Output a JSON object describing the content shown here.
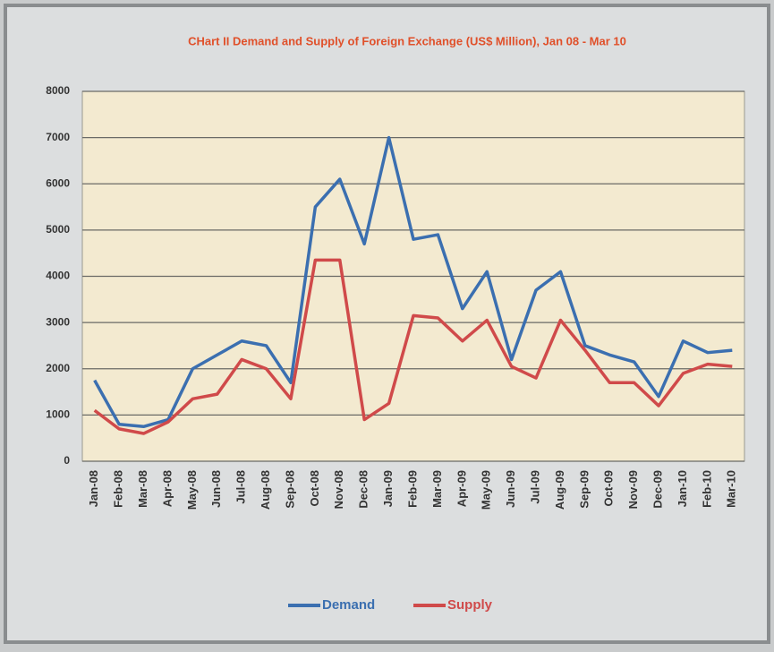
{
  "chart_data": {
    "type": "line",
    "title": "CHart II Demand and Supply of Foreign Exchange (US$ Million), Jan 08 - Mar 10",
    "categories": [
      "Jan-08",
      "Feb-08",
      "Mar-08",
      "Apr-08",
      "May-08",
      "Jun-08",
      "Jul-08",
      "Aug-08",
      "Sep-08",
      "Oct-08",
      "Nov-08",
      "Dec-08",
      "Jan-09",
      "Feb-09",
      "Mar-09",
      "Apr-09",
      "May-09",
      "Jun-09",
      "Jul-09",
      "Aug-09",
      "Sep-09",
      "Oct-09",
      "Nov-09",
      "Dec-09",
      "Jan-10",
      "Feb-10",
      "Mar-10"
    ],
    "series": [
      {
        "name": "Demand",
        "color": "#3b6fb0",
        "values": [
          1750,
          800,
          750,
          900,
          2000,
          2300,
          2600,
          2500,
          1700,
          5500,
          6100,
          4700,
          7000,
          4800,
          4900,
          3300,
          4100,
          2200,
          3700,
          4100,
          2500,
          2300,
          2150,
          1400,
          2600,
          2350,
          2400
        ]
      },
      {
        "name": "Supply",
        "color": "#d04a4a",
        "values": [
          1100,
          700,
          600,
          850,
          1350,
          1450,
          2200,
          2000,
          1350,
          4350,
          4350,
          900,
          1250,
          3150,
          3100,
          2600,
          3050,
          2050,
          1800,
          3050,
          2400,
          1700,
          1700,
          1200,
          1900,
          2100,
          2050
        ]
      }
    ],
    "ylim": [
      0,
      8000
    ],
    "yticks": [
      0,
      1000,
      2000,
      3000,
      4000,
      5000,
      6000,
      7000,
      8000
    ],
    "grid": true,
    "legend": "bottom"
  }
}
